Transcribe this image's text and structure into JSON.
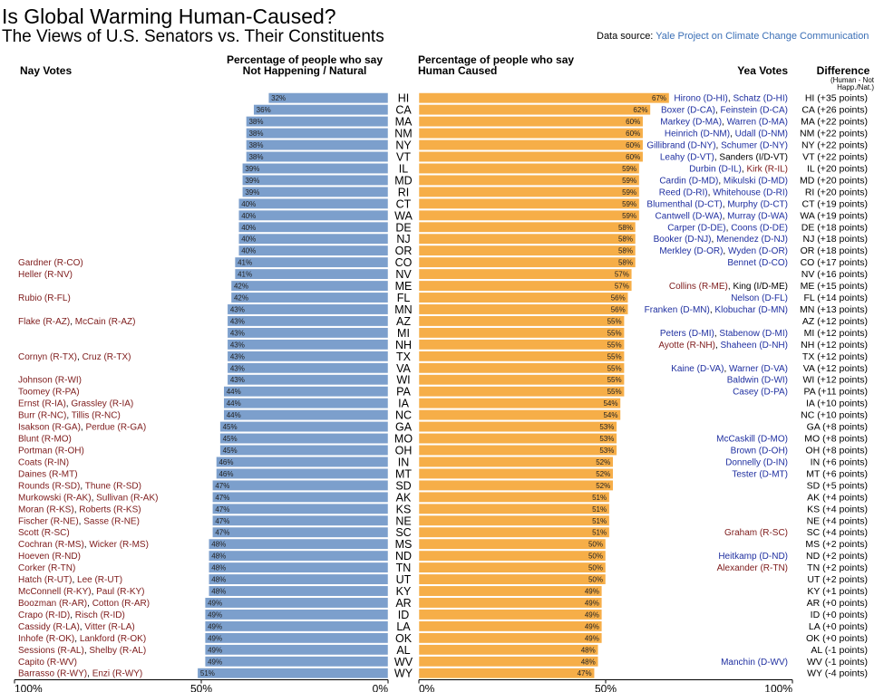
{
  "title": "Is Global Warming Human-Caused?",
  "subtitle": "The Views of U.S. Senators vs. Their Constituents",
  "source_label": "Data source:",
  "source_name": "Yale Project on Climate Change Communication",
  "left_header": "Percentage of people who say Not Happening / Natural",
  "right_header": "Percentage of people who say Human Caused",
  "nay_header": "Nay Votes",
  "yea_header": "Yea Votes",
  "diff_header": "Difference",
  "diff_note": "(Human - Not Happ./Nat.)",
  "colors": {
    "nay_bar": "#7c9fcc",
    "yea_bar": "#f6ae48",
    "democrat": "#1f2fa0",
    "republican": "#7d1a1a",
    "independent": "#000000"
  },
  "chart_data": {
    "type": "bar",
    "xlim": [
      0,
      100
    ],
    "x_ticks_left": [
      "100%",
      "50%",
      "0%"
    ],
    "x_ticks_right": [
      "0%",
      "50%",
      "100%"
    ],
    "rows": [
      {
        "state": "HI",
        "not_happening": 32,
        "human_caused": 67,
        "diff": "HI (+35 points)",
        "nay": [],
        "yea": [
          {
            "name": "Hirono (D-HI)",
            "party": "D"
          },
          {
            "name": "Schatz (D-HI)",
            "party": "D"
          }
        ]
      },
      {
        "state": "CA",
        "not_happening": 36,
        "human_caused": 62,
        "diff": "CA (+26 points)",
        "nay": [],
        "yea": [
          {
            "name": "Boxer (D-CA)",
            "party": "D"
          },
          {
            "name": "Feinstein (D-CA)",
            "party": "D"
          }
        ]
      },
      {
        "state": "MA",
        "not_happening": 38,
        "human_caused": 60,
        "diff": "MA (+22 points)",
        "nay": [],
        "yea": [
          {
            "name": "Markey (D-MA)",
            "party": "D"
          },
          {
            "name": "Warren (D-MA)",
            "party": "D"
          }
        ]
      },
      {
        "state": "NM",
        "not_happening": 38,
        "human_caused": 60,
        "diff": "NM (+22 points)",
        "nay": [],
        "yea": [
          {
            "name": "Heinrich (D-NM)",
            "party": "D"
          },
          {
            "name": "Udall (D-NM)",
            "party": "D"
          }
        ]
      },
      {
        "state": "NY",
        "not_happening": 38,
        "human_caused": 60,
        "diff": "NY (+22 points)",
        "nay": [],
        "yea": [
          {
            "name": "Gillibrand (D-NY)",
            "party": "D"
          },
          {
            "name": "Schumer (D-NY)",
            "party": "D"
          }
        ]
      },
      {
        "state": "VT",
        "not_happening": 38,
        "human_caused": 60,
        "diff": "VT (+22 points)",
        "nay": [],
        "yea": [
          {
            "name": "Leahy (D-VT)",
            "party": "D"
          },
          {
            "name": "Sanders (I/D-VT)",
            "party": "I"
          }
        ]
      },
      {
        "state": "IL",
        "not_happening": 39,
        "human_caused": 59,
        "diff": "IL (+20 points)",
        "nay": [],
        "yea": [
          {
            "name": "Durbin (D-IL)",
            "party": "D"
          },
          {
            "name": "Kirk (R-IL)",
            "party": "R"
          }
        ]
      },
      {
        "state": "MD",
        "not_happening": 39,
        "human_caused": 59,
        "diff": "MD (+20 points)",
        "nay": [],
        "yea": [
          {
            "name": "Cardin (D-MD)",
            "party": "D"
          },
          {
            "name": "Mikulski (D-MD)",
            "party": "D"
          }
        ]
      },
      {
        "state": "RI",
        "not_happening": 39,
        "human_caused": 59,
        "diff": "RI (+20 points)",
        "nay": [],
        "yea": [
          {
            "name": "Reed (D-RI)",
            "party": "D"
          },
          {
            "name": "Whitehouse (D-RI)",
            "party": "D"
          }
        ]
      },
      {
        "state": "CT",
        "not_happening": 40,
        "human_caused": 59,
        "diff": "CT (+19 points)",
        "nay": [],
        "yea": [
          {
            "name": "Blumenthal (D-CT)",
            "party": "D"
          },
          {
            "name": "Murphy (D-CT)",
            "party": "D"
          }
        ]
      },
      {
        "state": "WA",
        "not_happening": 40,
        "human_caused": 59,
        "diff": "WA (+19 points)",
        "nay": [],
        "yea": [
          {
            "name": "Cantwell (D-WA)",
            "party": "D"
          },
          {
            "name": "Murray (D-WA)",
            "party": "D"
          }
        ]
      },
      {
        "state": "DE",
        "not_happening": 40,
        "human_caused": 58,
        "diff": "DE (+18 points)",
        "nay": [],
        "yea": [
          {
            "name": "Carper (D-DE)",
            "party": "D"
          },
          {
            "name": "Coons (D-DE)",
            "party": "D"
          }
        ]
      },
      {
        "state": "NJ",
        "not_happening": 40,
        "human_caused": 58,
        "diff": "NJ (+18 points)",
        "nay": [],
        "yea": [
          {
            "name": "Booker (D-NJ)",
            "party": "D"
          },
          {
            "name": "Menendez (D-NJ)",
            "party": "D"
          }
        ]
      },
      {
        "state": "OR",
        "not_happening": 40,
        "human_caused": 58,
        "diff": "OR (+18 points)",
        "nay": [],
        "yea": [
          {
            "name": "Merkley (D-OR)",
            "party": "D"
          },
          {
            "name": "Wyden (D-OR)",
            "party": "D"
          }
        ]
      },
      {
        "state": "CO",
        "not_happening": 41,
        "human_caused": 58,
        "diff": "CO (+17 points)",
        "nay": [
          {
            "name": "Gardner (R-CO)",
            "party": "R"
          }
        ],
        "yea": [
          {
            "name": "Bennet (D-CO)",
            "party": "D"
          }
        ]
      },
      {
        "state": "NV",
        "not_happening": 41,
        "human_caused": 57,
        "diff": "NV (+16 points)",
        "nay": [
          {
            "name": "Heller (R-NV)",
            "party": "R"
          }
        ],
        "yea": []
      },
      {
        "state": "ME",
        "not_happening": 42,
        "human_caused": 57,
        "diff": "ME (+15 points)",
        "nay": [],
        "yea": [
          {
            "name": "Collins (R-ME)",
            "party": "R"
          },
          {
            "name": "King (I/D-ME)",
            "party": "I"
          }
        ]
      },
      {
        "state": "FL",
        "not_happening": 42,
        "human_caused": 56,
        "diff": "FL (+14 points)",
        "nay": [
          {
            "name": "Rubio (R-FL)",
            "party": "R"
          }
        ],
        "yea": [
          {
            "name": "Nelson (D-FL)",
            "party": "D"
          }
        ]
      },
      {
        "state": "MN",
        "not_happening": 43,
        "human_caused": 56,
        "diff": "MN (+13 points)",
        "nay": [],
        "yea": [
          {
            "name": "Franken (D-MN)",
            "party": "D"
          },
          {
            "name": "Klobuchar (D-MN)",
            "party": "D"
          }
        ]
      },
      {
        "state": "AZ",
        "not_happening": 43,
        "human_caused": 55,
        "diff": "AZ (+12 points)",
        "nay": [
          {
            "name": "Flake (R-AZ)",
            "party": "R"
          },
          {
            "name": "McCain (R-AZ)",
            "party": "R"
          }
        ],
        "yea": []
      },
      {
        "state": "MI",
        "not_happening": 43,
        "human_caused": 55,
        "diff": "MI (+12 points)",
        "nay": [],
        "yea": [
          {
            "name": "Peters (D-MI)",
            "party": "D"
          },
          {
            "name": "Stabenow (D-MI)",
            "party": "D"
          }
        ]
      },
      {
        "state": "NH",
        "not_happening": 43,
        "human_caused": 55,
        "diff": "NH (+12 points)",
        "nay": [],
        "yea": [
          {
            "name": "Ayotte (R-NH)",
            "party": "R"
          },
          {
            "name": "Shaheen (D-NH)",
            "party": "D"
          }
        ]
      },
      {
        "state": "TX",
        "not_happening": 43,
        "human_caused": 55,
        "diff": "TX (+12 points)",
        "nay": [
          {
            "name": "Cornyn (R-TX)",
            "party": "R"
          },
          {
            "name": "Cruz (R-TX)",
            "party": "R"
          }
        ],
        "yea": []
      },
      {
        "state": "VA",
        "not_happening": 43,
        "human_caused": 55,
        "diff": "VA (+12 points)",
        "nay": [],
        "yea": [
          {
            "name": "Kaine (D-VA)",
            "party": "D"
          },
          {
            "name": "Warner (D-VA)",
            "party": "D"
          }
        ]
      },
      {
        "state": "WI",
        "not_happening": 43,
        "human_caused": 55,
        "diff": "WI (+12 points)",
        "nay": [
          {
            "name": "Johnson (R-WI)",
            "party": "R"
          }
        ],
        "yea": [
          {
            "name": "Baldwin (D-WI)",
            "party": "D"
          }
        ]
      },
      {
        "state": "PA",
        "not_happening": 44,
        "human_caused": 55,
        "diff": "PA (+11 points)",
        "nay": [
          {
            "name": "Toomey (R-PA)",
            "party": "R"
          }
        ],
        "yea": [
          {
            "name": "Casey (D-PA)",
            "party": "D"
          }
        ]
      },
      {
        "state": "IA",
        "not_happening": 44,
        "human_caused": 54,
        "diff": "IA (+10 points)",
        "nay": [
          {
            "name": "Ernst (R-IA)",
            "party": "R"
          },
          {
            "name": "Grassley (R-IA)",
            "party": "R"
          }
        ],
        "yea": []
      },
      {
        "state": "NC",
        "not_happening": 44,
        "human_caused": 54,
        "diff": "NC (+10 points)",
        "nay": [
          {
            "name": "Burr (R-NC)",
            "party": "R"
          },
          {
            "name": "Tillis (R-NC)",
            "party": "R"
          }
        ],
        "yea": []
      },
      {
        "state": "GA",
        "not_happening": 45,
        "human_caused": 53,
        "diff": "GA (+8 points)",
        "nay": [
          {
            "name": "Isakson (R-GA)",
            "party": "R"
          },
          {
            "name": "Perdue (R-GA)",
            "party": "R"
          }
        ],
        "yea": []
      },
      {
        "state": "MO",
        "not_happening": 45,
        "human_caused": 53,
        "diff": "MO (+8 points)",
        "nay": [
          {
            "name": "Blunt (R-MO)",
            "party": "R"
          }
        ],
        "yea": [
          {
            "name": "McCaskill (D-MO)",
            "party": "D"
          }
        ]
      },
      {
        "state": "OH",
        "not_happening": 45,
        "human_caused": 53,
        "diff": "OH (+8 points)",
        "nay": [
          {
            "name": "Portman (R-OH)",
            "party": "R"
          }
        ],
        "yea": [
          {
            "name": "Brown (D-OH)",
            "party": "D"
          }
        ]
      },
      {
        "state": "IN",
        "not_happening": 46,
        "human_caused": 52,
        "diff": "IN (+6 points)",
        "nay": [
          {
            "name": "Coats (R-IN)",
            "party": "R"
          }
        ],
        "yea": [
          {
            "name": "Donnelly (D-IN)",
            "party": "D"
          }
        ]
      },
      {
        "state": "MT",
        "not_happening": 46,
        "human_caused": 52,
        "diff": "MT (+6 points)",
        "nay": [
          {
            "name": "Daines (R-MT)",
            "party": "R"
          }
        ],
        "yea": [
          {
            "name": "Tester (D-MT)",
            "party": "D"
          }
        ]
      },
      {
        "state": "SD",
        "not_happening": 47,
        "human_caused": 52,
        "diff": "SD (+5 points)",
        "nay": [
          {
            "name": "Rounds (R-SD)",
            "party": "R"
          },
          {
            "name": "Thune (R-SD)",
            "party": "R"
          }
        ],
        "yea": []
      },
      {
        "state": "AK",
        "not_happening": 47,
        "human_caused": 51,
        "diff": "AK (+4 points)",
        "nay": [
          {
            "name": "Murkowski (R-AK)",
            "party": "R"
          },
          {
            "name": "Sullivan (R-AK)",
            "party": "R"
          }
        ],
        "yea": []
      },
      {
        "state": "KS",
        "not_happening": 47,
        "human_caused": 51,
        "diff": "KS (+4 points)",
        "nay": [
          {
            "name": "Moran (R-KS)",
            "party": "R"
          },
          {
            "name": "Roberts (R-KS)",
            "party": "R"
          }
        ],
        "yea": []
      },
      {
        "state": "NE",
        "not_happening": 47,
        "human_caused": 51,
        "diff": "NE (+4 points)",
        "nay": [
          {
            "name": "Fischer (R-NE)",
            "party": "R"
          },
          {
            "name": "Sasse (R-NE)",
            "party": "R"
          }
        ],
        "yea": []
      },
      {
        "state": "SC",
        "not_happening": 47,
        "human_caused": 51,
        "diff": "SC (+4 points)",
        "nay": [
          {
            "name": "Scott (R-SC)",
            "party": "R"
          }
        ],
        "yea": [
          {
            "name": "Graham (R-SC)",
            "party": "R"
          }
        ]
      },
      {
        "state": "MS",
        "not_happening": 48,
        "human_caused": 50,
        "diff": "MS (+2 points)",
        "nay": [
          {
            "name": "Cochran (R-MS)",
            "party": "R"
          },
          {
            "name": "Wicker (R-MS)",
            "party": "R"
          }
        ],
        "yea": []
      },
      {
        "state": "ND",
        "not_happening": 48,
        "human_caused": 50,
        "diff": "ND (+2 points)",
        "nay": [
          {
            "name": "Hoeven (R-ND)",
            "party": "R"
          }
        ],
        "yea": [
          {
            "name": "Heitkamp (D-ND)",
            "party": "D"
          }
        ]
      },
      {
        "state": "TN",
        "not_happening": 48,
        "human_caused": 50,
        "diff": "TN (+2 points)",
        "nay": [
          {
            "name": "Corker (R-TN)",
            "party": "R"
          }
        ],
        "yea": [
          {
            "name": "Alexander (R-TN)",
            "party": "R"
          }
        ]
      },
      {
        "state": "UT",
        "not_happening": 48,
        "human_caused": 50,
        "diff": "UT (+2 points)",
        "nay": [
          {
            "name": "Hatch (R-UT)",
            "party": "R"
          },
          {
            "name": "Lee (R-UT)",
            "party": "R"
          }
        ],
        "yea": []
      },
      {
        "state": "KY",
        "not_happening": 48,
        "human_caused": 49,
        "diff": "KY (+1 points)",
        "nay": [
          {
            "name": "McConnell (R-KY)",
            "party": "R"
          },
          {
            "name": "Paul (R-KY)",
            "party": "R"
          }
        ],
        "yea": []
      },
      {
        "state": "AR",
        "not_happening": 49,
        "human_caused": 49,
        "diff": "AR (+0 points)",
        "nay": [
          {
            "name": "Boozman (R-AR)",
            "party": "R"
          },
          {
            "name": "Cotton (R-AR)",
            "party": "R"
          }
        ],
        "yea": []
      },
      {
        "state": "ID",
        "not_happening": 49,
        "human_caused": 49,
        "diff": "ID (+0 points)",
        "nay": [
          {
            "name": "Crapo (R-ID)",
            "party": "R"
          },
          {
            "name": "Risch (R-ID)",
            "party": "R"
          }
        ],
        "yea": []
      },
      {
        "state": "LA",
        "not_happening": 49,
        "human_caused": 49,
        "diff": "LA (+0 points)",
        "nay": [
          {
            "name": "Cassidy (R-LA)",
            "party": "R"
          },
          {
            "name": "Vitter (R-LA)",
            "party": "R"
          }
        ],
        "yea": []
      },
      {
        "state": "OK",
        "not_happening": 49,
        "human_caused": 49,
        "diff": "OK (+0 points)",
        "nay": [
          {
            "name": "Inhofe (R-OK)",
            "party": "R"
          },
          {
            "name": "Lankford (R-OK)",
            "party": "R"
          }
        ],
        "yea": []
      },
      {
        "state": "AL",
        "not_happening": 49,
        "human_caused": 48,
        "diff": "AL (-1 points)",
        "nay": [
          {
            "name": "Sessions (R-AL)",
            "party": "R"
          },
          {
            "name": "Shelby (R-AL)",
            "party": "R"
          }
        ],
        "yea": []
      },
      {
        "state": "WV",
        "not_happening": 49,
        "human_caused": 48,
        "diff": "WV (-1 points)",
        "nay": [
          {
            "name": "Capito (R-WV)",
            "party": "R"
          }
        ],
        "yea": [
          {
            "name": "Manchin (D-WV)",
            "party": "D"
          }
        ]
      },
      {
        "state": "WY",
        "not_happening": 51,
        "human_caused": 47,
        "diff": "WY (-4 points)",
        "nay": [
          {
            "name": "Barrasso (R-WY)",
            "party": "R"
          },
          {
            "name": "Enzi (R-WY)",
            "party": "R"
          }
        ],
        "yea": []
      }
    ]
  }
}
